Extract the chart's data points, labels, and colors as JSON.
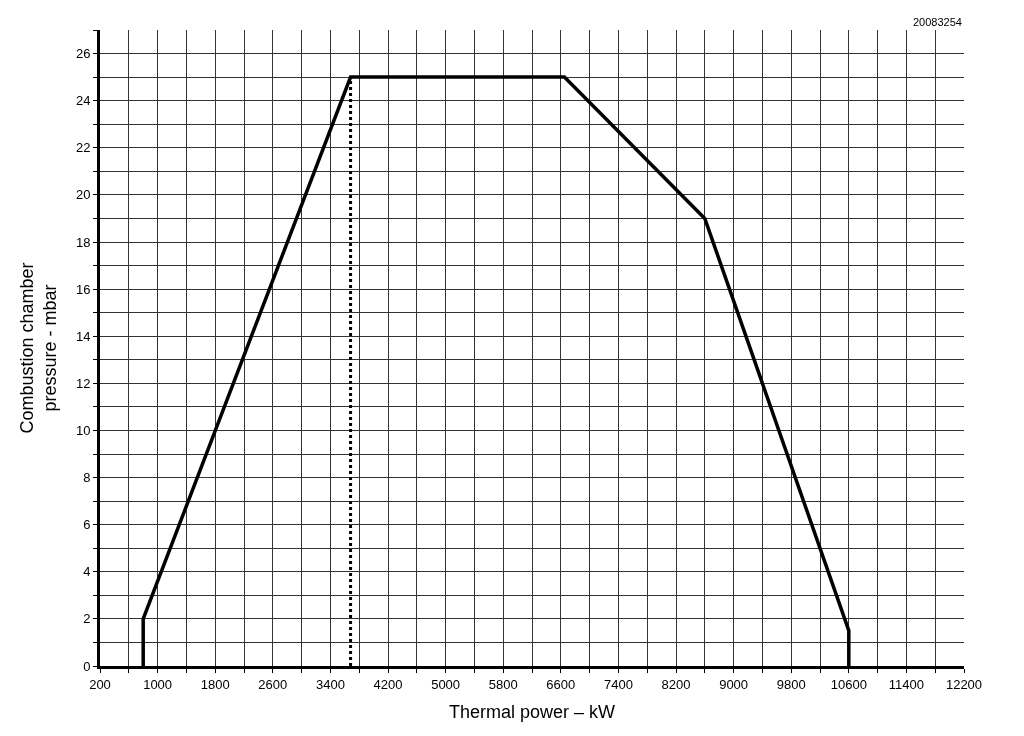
{
  "chart_data": {
    "type": "line",
    "xlabel": "Thermal power – kW",
    "ylabel": "Combustion chamber\npressure - mbar",
    "annotations": [
      "20083254"
    ],
    "series": [
      {
        "color": "#000000",
        "x": [
          800,
          800,
          3680,
          6650,
          8600,
          10600,
          10600
        ],
        "values": [
          0,
          2,
          25,
          25,
          19,
          1.5,
          0
        ],
        "line_style": "solid"
      },
      {
        "color": "#000000",
        "x": [
          3680,
          3680
        ],
        "values": [
          0,
          25
        ],
        "line_style": "dotted"
      }
    ],
    "xlim": [
      200,
      12200
    ],
    "xticks": [
      200,
      {
        "value": 600,
        "label": null
      },
      1000,
      {
        "value": 1400,
        "label": null
      },
      1800,
      {
        "value": 2200,
        "label": null
      },
      2600,
      {
        "value": 3000,
        "label": null
      },
      3400,
      {
        "value": 3800,
        "label": null
      },
      4200,
      {
        "value": 4600,
        "label": null
      },
      5000,
      {
        "value": 5400,
        "label": null
      },
      5800,
      {
        "value": 6200,
        "label": null
      },
      6600,
      {
        "value": 7000,
        "label": null
      },
      7400,
      {
        "value": 7800,
        "label": null
      },
      8200,
      {
        "value": 8600,
        "label": null
      },
      9000,
      {
        "value": 9400,
        "label": null
      },
      9800,
      {
        "value": 10200,
        "label": null
      },
      10600,
      {
        "value": 11000,
        "label": null
      },
      11400,
      {
        "value": 11800,
        "label": null
      },
      12200
    ],
    "ylim": [
      0,
      27
    ],
    "yticks": [
      0,
      {
        "value": 1,
        "label": null
      },
      2,
      {
        "value": 3,
        "label": null
      },
      4,
      {
        "value": 5,
        "label": null
      },
      6,
      {
        "value": 7,
        "label": null
      },
      8,
      {
        "value": 9,
        "label": null
      },
      10,
      {
        "value": 11,
        "label": null
      },
      12,
      {
        "value": 13,
        "label": null
      },
      14,
      {
        "value": 15,
        "label": null
      },
      16,
      {
        "value": 17,
        "label": null
      },
      18,
      {
        "value": 19,
        "label": null
      },
      20,
      {
        "value": 21,
        "label": null
      },
      22,
      {
        "value": 23,
        "label": null
      },
      24,
      {
        "value": 25,
        "label": null
      },
      26,
      {
        "value": 27,
        "label": null
      }
    ],
    "grid": true,
    "marker": "none"
  }
}
